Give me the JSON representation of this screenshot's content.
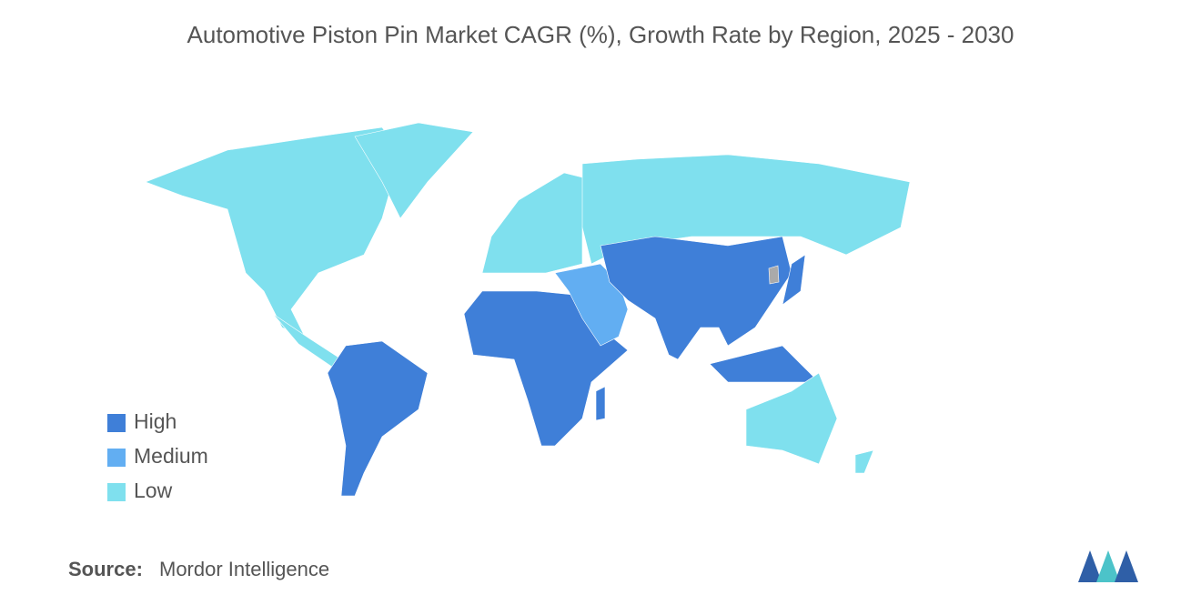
{
  "title": "Automotive Piston Pin Market CAGR (%), Growth Rate by Region, 2025 - 2030",
  "legend": [
    {
      "label": "High",
      "color": "#3f7fd8"
    },
    {
      "label": "Medium",
      "color": "#62aef2"
    },
    {
      "label": "Low",
      "color": "#7fe0ee"
    }
  ],
  "source": {
    "label": "Source:",
    "text": "Mordor Intelligence"
  }
}
